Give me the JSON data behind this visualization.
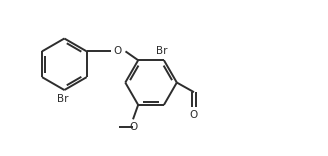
{
  "background": "#ffffff",
  "line_color": "#2d2d2d",
  "line_width": 1.4,
  "font_size": 7.5,
  "figsize": [
    3.28,
    1.56
  ],
  "dpi": 100,
  "xlim": [
    0,
    9.5
  ],
  "ylim": [
    0,
    4.5
  ]
}
